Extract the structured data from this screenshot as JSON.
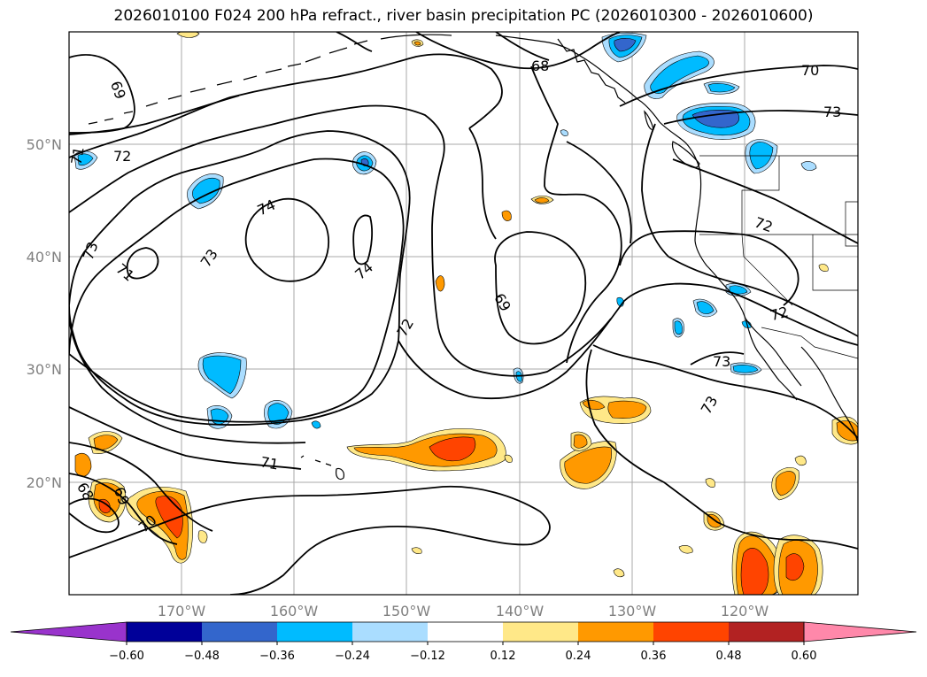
{
  "title": "2026010100 F024 200 hPa refract., river basin precipitation PC (2026010300 - 2026010600)",
  "lat_ticks": [
    "50°N",
    "40°N",
    "30°N",
    "20°N"
  ],
  "lon_ticks": [
    "170°W",
    "160°W",
    "150°W",
    "140°W",
    "130°W",
    "120°W"
  ],
  "colorbar": {
    "ticks": [
      "−0.60",
      "−0.48",
      "−0.36",
      "−0.24",
      "−0.12",
      "0.12",
      "0.24",
      "0.36",
      "0.48",
      "0.60"
    ],
    "colors": [
      "#9933cc",
      "#000099",
      "#3366cc",
      "#00bbff",
      "#aaddff",
      "#ffffff",
      "#ffe888",
      "#ff9900",
      "#ff4400",
      "#b22222",
      "#ff88aa"
    ]
  },
  "contour_labels": [
    "69",
    "68",
    "70",
    "73",
    "72",
    "74",
    "73",
    "71",
    "72",
    "71",
    "68",
    "69",
    "70",
    "74",
    "69",
    "72",
    "72",
    "73",
    "73",
    "71",
    "73"
  ]
}
